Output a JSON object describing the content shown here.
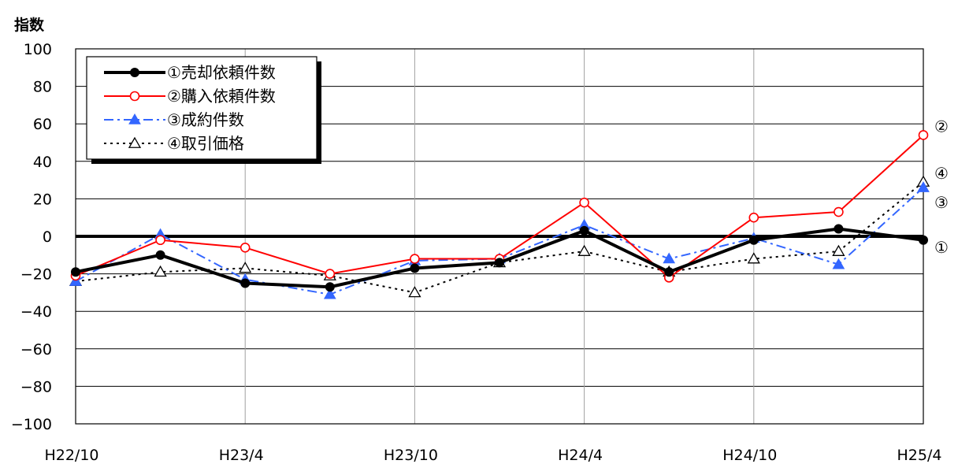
{
  "chart_data": {
    "type": "line",
    "ylabel": "指数",
    "xlabel": "",
    "ylim": [
      -100,
      100
    ],
    "yticks": [
      100,
      80,
      60,
      40,
      20,
      0,
      -20,
      -40,
      -60,
      -80,
      -100
    ],
    "x_tick_labels": [
      "H22/10",
      "H23/4",
      "H23/10",
      "H24/4",
      "H24/10",
      "H25/4"
    ],
    "x_count": 11,
    "grid": true,
    "legend_position": "top-left",
    "series": [
      {
        "name": "①売却依頼件数",
        "end_label": "①",
        "color": "#000000",
        "marker": "filled-circle",
        "line": "solid-thick",
        "values": [
          -19,
          -10,
          -25,
          -27,
          -17,
          -14,
          3,
          -19,
          -2,
          4,
          -2
        ]
      },
      {
        "name": "②購入依頼件数",
        "end_label": "②",
        "color": "#ff0000",
        "marker": "open-circle",
        "line": "solid",
        "values": [
          -21,
          -2,
          -6,
          -20,
          -12,
          -12,
          18,
          -22,
          10,
          13,
          54
        ]
      },
      {
        "name": "③成約件数",
        "end_label": "③",
        "color": "#3366ff",
        "marker": "filled-triangle",
        "line": "dash-dot",
        "values": [
          -24,
          1,
          -23,
          -31,
          -13,
          -12,
          6,
          -12,
          -1,
          -15,
          26
        ]
      },
      {
        "name": "④取引価格",
        "end_label": "④",
        "color": "#000000",
        "marker": "open-triangle",
        "line": "dotted",
        "values": [
          -24,
          -19,
          -17,
          -21,
          -30,
          -14,
          -8,
          -19,
          -12,
          -8,
          29
        ]
      }
    ]
  }
}
